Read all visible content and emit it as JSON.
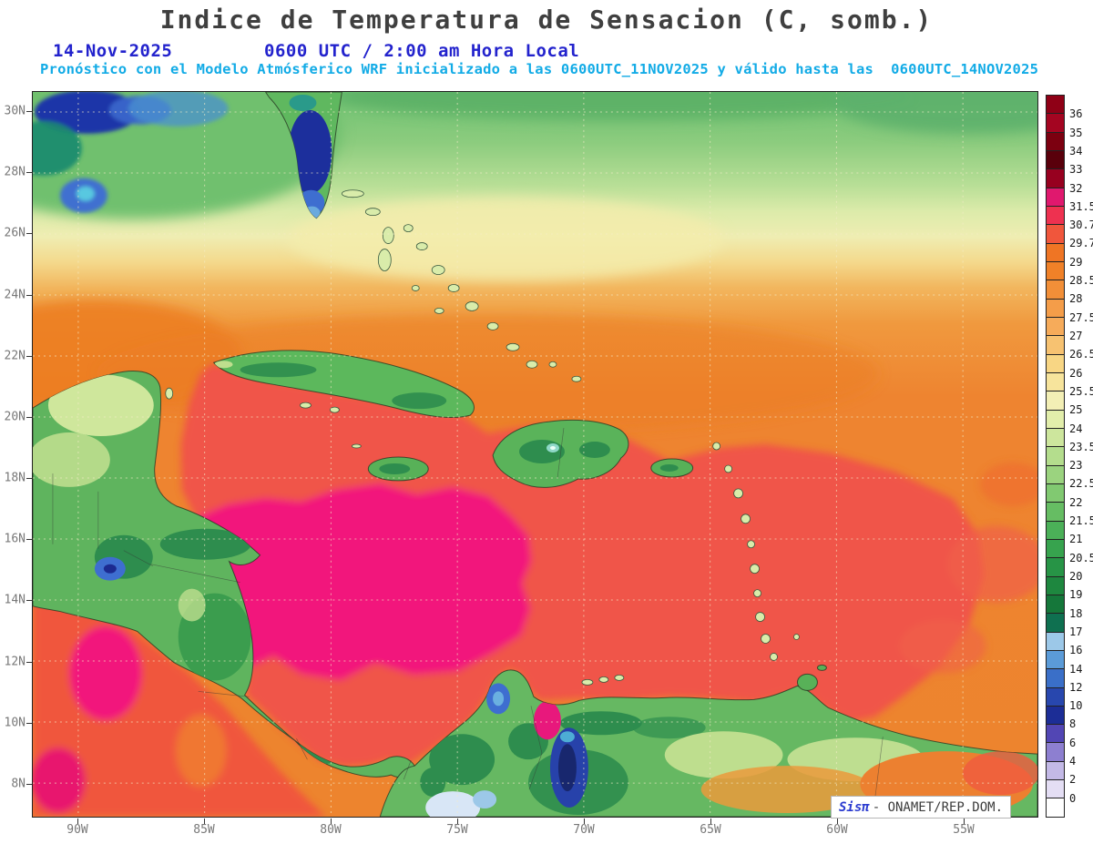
{
  "header": {
    "title": "Indice de Temperatura de Sensacion (C, somb.)",
    "date": "14-Nov-2025",
    "time": "0600 UTC / 2:00 am Hora Local",
    "forecast_note": "Pronóstico con el Modelo Atmósferico WRF inicializado a las 0600UTC_11NOV2025 y válido hasta las  0600UTC_14NOV2025"
  },
  "map": {
    "lat_labels": [
      "30N",
      "28N",
      "26N",
      "24N",
      "22N",
      "20N",
      "18N",
      "16N",
      "14N",
      "12N",
      "10N",
      "8N"
    ],
    "lon_labels": [
      "90W",
      "85W",
      "80W",
      "75W",
      "70W",
      "65W",
      "60W",
      "55W"
    ],
    "watermark": {
      "brand": "Sisπ",
      "credit": "- ONAMET/REP.DOM."
    }
  },
  "colorbar": {
    "labels": [
      "36",
      "35",
      "34",
      "33",
      "32",
      "31.5",
      "30.7",
      "29.7",
      "29",
      "28.5",
      "28",
      "27.5",
      "27",
      "26.5",
      "26",
      "25.5",
      "25",
      "24",
      "23.5",
      "23",
      "22.5",
      "22",
      "21.5",
      "21",
      "20.5",
      "20",
      "19",
      "18",
      "17",
      "16",
      "14",
      "12",
      "10",
      "8",
      "6",
      "4",
      "2",
      "0"
    ],
    "cell_colors": [
      "#8f0016",
      "#a40521",
      "#7c0010",
      "#59000b",
      "#97001f",
      "#e0186e",
      "#ee3150",
      "#f0563c",
      "#ef7524",
      "#f08128",
      "#f28f38",
      "#f49d49",
      "#f6ab5a",
      "#f7c271",
      "#f8d684",
      "#f7e49c",
      "#f3efb5",
      "#e2eeab",
      "#cde69d",
      "#b4dd8d",
      "#9bd37f",
      "#81c971",
      "#66bd63",
      "#4bb058",
      "#37a34e",
      "#279446",
      "#1e873f",
      "#15773a",
      "#0f7050",
      "#9cc8e8",
      "#5b9bd8",
      "#3a6fc8",
      "#2847ae",
      "#1c2d96",
      "#5246b4",
      "#8d7fd0",
      "#c3b9e6",
      "#e4def4",
      "#ffffff"
    ]
  },
  "palette": {
    "title_color": "#3f3f3f",
    "date_color": "#2323cd",
    "note_color": "#12abe6",
    "sea_red": "#f0544a",
    "sea_magenta": "#f2177b",
    "sea_orange": "#ee8430"
  }
}
